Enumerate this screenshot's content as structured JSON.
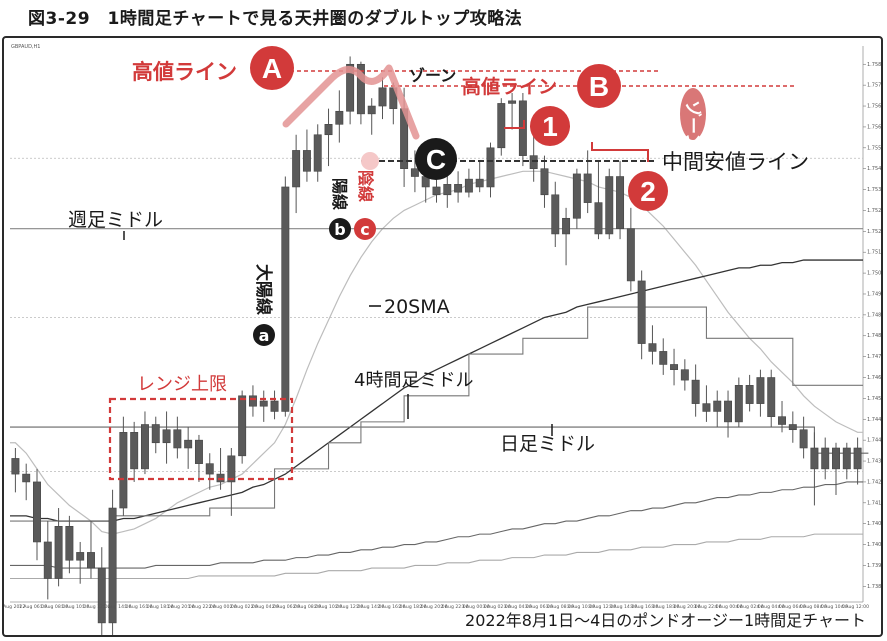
{
  "figure_title": "図3-29　1時間足チャートで見る天井圏のダブルトップ攻略法",
  "colors": {
    "accent": "#d23a3a",
    "dark": "#1a1a1a",
    "candle": "#555555",
    "ma20": "#b8b8b8",
    "ma_long": "#333333"
  },
  "chart_data": {
    "type": "candlestick",
    "title": "GBPAUD,H1",
    "caption": "2022年8月1日～4日のポンドオージー1時間足チャート",
    "ylim": [
      1.7379,
      1.7592
    ],
    "y_ticks": [
      "1.75850",
      "1.75770",
      "1.75690",
      "1.75610",
      "1.75530",
      "1.75450",
      "1.75370",
      "1.75290",
      "1.75210",
      "1.75130",
      "1.75050",
      "1.74970",
      "1.74890",
      "1.74810",
      "1.74730",
      "1.74650",
      "1.74570",
      "1.74490",
      "1.74410",
      "1.74330",
      "1.74250",
      "1.74170",
      "1.74090",
      "1.74010",
      "1.73930",
      "1.73850"
    ],
    "x_ticks": [
      "1 Aug 2022",
      "1 Aug 06:00",
      "1 Aug 08:00",
      "1 Aug 10:00",
      "1 Aug 12:00",
      "1 Aug 14:00",
      "1 Aug 16:00",
      "1 Aug 18:00",
      "1 Aug 20:00",
      "1 Aug 22:00",
      "2 Aug 00:00",
      "2 Aug 02:00",
      "2 Aug 04:00",
      "2 Aug 06:00",
      "2 Aug 08:00",
      "2 Aug 10:00",
      "2 Aug 12:00",
      "2 Aug 14:00",
      "2 Aug 16:00",
      "2 Aug 18:00",
      "2 Aug 20:00",
      "2 Aug 22:00",
      "3 Aug 00:00",
      "3 Aug 02:00",
      "3 Aug 04:00",
      "3 Aug 06:00",
      "3 Aug 08:00",
      "3 Aug 10:00",
      "3 Aug 12:00",
      "3 Aug 14:00",
      "3 Aug 16:00",
      "3 Aug 18:00",
      "3 Aug 20:00",
      "3 Aug 22:00",
      "4 Aug 00:00",
      "4 Aug 02:00",
      "4 Aug 04:00",
      "4 Aug 06:00",
      "4 Aug 08:00",
      "4 Aug 10:00",
      "4 Aug 12:00"
    ],
    "candles": [
      {
        "o": 1.7434,
        "h": 1.7438,
        "l": 1.7421,
        "c": 1.7428
      },
      {
        "o": 1.7428,
        "h": 1.7432,
        "l": 1.7418,
        "c": 1.7425
      },
      {
        "o": 1.7425,
        "h": 1.743,
        "l": 1.7395,
        "c": 1.7402
      },
      {
        "o": 1.7402,
        "h": 1.741,
        "l": 1.738,
        "c": 1.7388
      },
      {
        "o": 1.7388,
        "h": 1.7415,
        "l": 1.7385,
        "c": 1.7408
      },
      {
        "o": 1.7408,
        "h": 1.7412,
        "l": 1.739,
        "c": 1.7395
      },
      {
        "o": 1.7395,
        "h": 1.7402,
        "l": 1.7386,
        "c": 1.7398
      },
      {
        "o": 1.7398,
        "h": 1.741,
        "l": 1.7388,
        "c": 1.7392
      },
      {
        "o": 1.7392,
        "h": 1.74,
        "l": 1.7366,
        "c": 1.7371
      },
      {
        "o": 1.7371,
        "h": 1.7422,
        "l": 1.7366,
        "c": 1.7415
      },
      {
        "o": 1.7415,
        "h": 1.745,
        "l": 1.7412,
        "c": 1.7444
      },
      {
        "o": 1.7444,
        "h": 1.7448,
        "l": 1.7425,
        "c": 1.743
      },
      {
        "o": 1.743,
        "h": 1.7452,
        "l": 1.7428,
        "c": 1.7447
      },
      {
        "o": 1.7447,
        "h": 1.745,
        "l": 1.7436,
        "c": 1.744
      },
      {
        "o": 1.744,
        "h": 1.7452,
        "l": 1.7432,
        "c": 1.7445
      },
      {
        "o": 1.7445,
        "h": 1.745,
        "l": 1.7434,
        "c": 1.7438
      },
      {
        "o": 1.7438,
        "h": 1.7446,
        "l": 1.743,
        "c": 1.7441
      },
      {
        "o": 1.7441,
        "h": 1.7443,
        "l": 1.7425,
        "c": 1.7432
      },
      {
        "o": 1.7432,
        "h": 1.7436,
        "l": 1.7422,
        "c": 1.7428
      },
      {
        "o": 1.7428,
        "h": 1.7438,
        "l": 1.7422,
        "c": 1.7425
      },
      {
        "o": 1.7425,
        "h": 1.7438,
        "l": 1.7412,
        "c": 1.7435
      },
      {
        "o": 1.7435,
        "h": 1.746,
        "l": 1.7432,
        "c": 1.7458
      },
      {
        "o": 1.7458,
        "h": 1.7462,
        "l": 1.745,
        "c": 1.7454
      },
      {
        "o": 1.7454,
        "h": 1.746,
        "l": 1.7448,
        "c": 1.7456
      },
      {
        "o": 1.7456,
        "h": 1.746,
        "l": 1.7449,
        "c": 1.7452
      },
      {
        "o": 1.7452,
        "h": 1.7542,
        "l": 1.745,
        "c": 1.7538
      },
      {
        "o": 1.7538,
        "h": 1.7558,
        "l": 1.7528,
        "c": 1.7552
      },
      {
        "o": 1.7552,
        "h": 1.756,
        "l": 1.754,
        "c": 1.7544
      },
      {
        "o": 1.7544,
        "h": 1.7562,
        "l": 1.754,
        "c": 1.7558
      },
      {
        "o": 1.7558,
        "h": 1.7568,
        "l": 1.7546,
        "c": 1.7562
      },
      {
        "o": 1.7562,
        "h": 1.7575,
        "l": 1.7555,
        "c": 1.7567
      },
      {
        "o": 1.7567,
        "h": 1.7588,
        "l": 1.7562,
        "c": 1.7585
      },
      {
        "o": 1.7585,
        "h": 1.7586,
        "l": 1.7562,
        "c": 1.7566
      },
      {
        "o": 1.7566,
        "h": 1.7572,
        "l": 1.7558,
        "c": 1.7569
      },
      {
        "o": 1.7569,
        "h": 1.758,
        "l": 1.7564,
        "c": 1.7576
      },
      {
        "o": 1.7576,
        "h": 1.7578,
        "l": 1.7562,
        "c": 1.7568
      },
      {
        "o": 1.7568,
        "h": 1.7576,
        "l": 1.7538,
        "c": 1.7545
      },
      {
        "o": 1.7545,
        "h": 1.7552,
        "l": 1.7536,
        "c": 1.7542
      },
      {
        "o": 1.7542,
        "h": 1.7545,
        "l": 1.7532,
        "c": 1.7538
      },
      {
        "o": 1.7538,
        "h": 1.7542,
        "l": 1.7532,
        "c": 1.7535
      },
      {
        "o": 1.7535,
        "h": 1.7542,
        "l": 1.753,
        "c": 1.7539
      },
      {
        "o": 1.7539,
        "h": 1.7544,
        "l": 1.7532,
        "c": 1.7536
      },
      {
        "o": 1.7536,
        "h": 1.7545,
        "l": 1.7534,
        "c": 1.7541
      },
      {
        "o": 1.7541,
        "h": 1.7548,
        "l": 1.7536,
        "c": 1.7538
      },
      {
        "o": 1.7538,
        "h": 1.7555,
        "l": 1.7534,
        "c": 1.7553
      },
      {
        "o": 1.7553,
        "h": 1.7572,
        "l": 1.755,
        "c": 1.757
      },
      {
        "o": 1.757,
        "h": 1.7574,
        "l": 1.756,
        "c": 1.7571
      },
      {
        "o": 1.7571,
        "h": 1.7574,
        "l": 1.7546,
        "c": 1.755
      },
      {
        "o": 1.755,
        "h": 1.756,
        "l": 1.754,
        "c": 1.7545
      },
      {
        "o": 1.7545,
        "h": 1.755,
        "l": 1.753,
        "c": 1.7535
      },
      {
        "o": 1.7535,
        "h": 1.754,
        "l": 1.7515,
        "c": 1.752
      },
      {
        "o": 1.752,
        "h": 1.753,
        "l": 1.7508,
        "c": 1.7526
      },
      {
        "o": 1.7526,
        "h": 1.7545,
        "l": 1.7522,
        "c": 1.7543
      },
      {
        "o": 1.7543,
        "h": 1.7552,
        "l": 1.7528,
        "c": 1.7532
      },
      {
        "o": 1.7532,
        "h": 1.7548,
        "l": 1.7518,
        "c": 1.752
      },
      {
        "o": 1.752,
        "h": 1.7545,
        "l": 1.7518,
        "c": 1.7542
      },
      {
        "o": 1.7542,
        "h": 1.7548,
        "l": 1.7518,
        "c": 1.7522
      },
      {
        "o": 1.7522,
        "h": 1.753,
        "l": 1.7498,
        "c": 1.7502
      },
      {
        "o": 1.7502,
        "h": 1.7506,
        "l": 1.7472,
        "c": 1.7478
      },
      {
        "o": 1.7478,
        "h": 1.7485,
        "l": 1.747,
        "c": 1.7475
      },
      {
        "o": 1.7475,
        "h": 1.748,
        "l": 1.7466,
        "c": 1.747
      },
      {
        "o": 1.747,
        "h": 1.7476,
        "l": 1.7462,
        "c": 1.7468
      },
      {
        "o": 1.7468,
        "h": 1.7472,
        "l": 1.746,
        "c": 1.7464
      },
      {
        "o": 1.7464,
        "h": 1.747,
        "l": 1.745,
        "c": 1.7455
      },
      {
        "o": 1.7455,
        "h": 1.7462,
        "l": 1.7448,
        "c": 1.7452
      },
      {
        "o": 1.7452,
        "h": 1.746,
        "l": 1.7446,
        "c": 1.7456
      },
      {
        "o": 1.7456,
        "h": 1.746,
        "l": 1.7442,
        "c": 1.7448
      },
      {
        "o": 1.7448,
        "h": 1.7465,
        "l": 1.7446,
        "c": 1.7462
      },
      {
        "o": 1.7462,
        "h": 1.7466,
        "l": 1.7452,
        "c": 1.7455
      },
      {
        "o": 1.7455,
        "h": 1.7468,
        "l": 1.745,
        "c": 1.7465
      },
      {
        "o": 1.7465,
        "h": 1.7468,
        "l": 1.7446,
        "c": 1.745
      },
      {
        "o": 1.745,
        "h": 1.7456,
        "l": 1.7444,
        "c": 1.7447
      },
      {
        "o": 1.7447,
        "h": 1.7452,
        "l": 1.744,
        "c": 1.7445
      },
      {
        "o": 1.7445,
        "h": 1.745,
        "l": 1.7434,
        "c": 1.7438
      },
      {
        "o": 1.7438,
        "h": 1.7444,
        "l": 1.7416,
        "c": 1.743
      },
      {
        "o": 1.743,
        "h": 1.7442,
        "l": 1.7426,
        "c": 1.7438
      },
      {
        "o": 1.7438,
        "h": 1.744,
        "l": 1.742,
        "c": 1.743
      },
      {
        "o": 1.743,
        "h": 1.744,
        "l": 1.7426,
        "c": 1.7438
      },
      {
        "o": 1.7438,
        "h": 1.7442,
        "l": 1.7424,
        "c": 1.743
      }
    ],
    "lines": {
      "ma20": [
        1.744,
        1.7436,
        1.743,
        1.7424,
        1.742,
        1.7416,
        1.7413,
        1.741,
        1.7406,
        1.7405,
        1.7406,
        1.7407,
        1.7409,
        1.7411,
        1.7414,
        1.7417,
        1.7419,
        1.7421,
        1.7423,
        1.7424,
        1.7426,
        1.7428,
        1.7432,
        1.7436,
        1.744,
        1.7447,
        1.7457,
        1.7468,
        1.7478,
        1.7487,
        1.7496,
        1.7504,
        1.7511,
        1.7517,
        1.7522,
        1.7526,
        1.7529,
        1.7531,
        1.7533,
        1.7535,
        1.7536,
        1.7537,
        1.7539,
        1.754,
        1.7541,
        1.7542,
        1.7543,
        1.7544,
        1.7544,
        1.7544,
        1.7543,
        1.7542,
        1.7541,
        1.754,
        1.7538,
        1.7537,
        1.7536,
        1.7534,
        1.7531,
        1.7527,
        1.7523,
        1.7518,
        1.7513,
        1.7508,
        1.7502,
        1.7496,
        1.749,
        1.7485,
        1.748,
        1.7476,
        1.7471,
        1.7467,
        1.7463,
        1.7458,
        1.7454,
        1.7451,
        1.7448,
        1.7446,
        1.7444
      ],
      "ma_mid": [
        1.7412,
        1.7412,
        1.7411,
        1.7411,
        1.741,
        1.741,
        1.741,
        1.741,
        1.741,
        1.741,
        1.7411,
        1.7411,
        1.7412,
        1.7413,
        1.7414,
        1.7415,
        1.7416,
        1.7417,
        1.7418,
        1.7419,
        1.742,
        1.7421,
        1.7423,
        1.7424,
        1.7426,
        1.7428,
        1.7431,
        1.7434,
        1.7437,
        1.744,
        1.7443,
        1.7446,
        1.7449,
        1.7452,
        1.7455,
        1.7458,
        1.7461,
        1.7463,
        1.7466,
        1.7468,
        1.747,
        1.7472,
        1.7474,
        1.7476,
        1.7478,
        1.748,
        1.7482,
        1.7484,
        1.7486,
        1.7488,
        1.7489,
        1.749,
        1.7492,
        1.7493,
        1.7494,
        1.7495,
        1.7496,
        1.7497,
        1.7498,
        1.7499,
        1.75,
        1.7501,
        1.7502,
        1.7503,
        1.7504,
        1.7505,
        1.7506,
        1.7507,
        1.7507,
        1.7508,
        1.7508,
        1.7509,
        1.7509,
        1.751,
        1.751,
        1.751,
        1.751,
        1.751,
        1.751
      ],
      "ma_long1": [
        1.7393,
        1.7393,
        1.7393,
        1.7393,
        1.7392,
        1.7392,
        1.7392,
        1.7392,
        1.7392,
        1.7392,
        1.7392,
        1.7392,
        1.7392,
        1.7393,
        1.7393,
        1.7393,
        1.7393,
        1.7393,
        1.7393,
        1.7394,
        1.7394,
        1.7394,
        1.7394,
        1.7395,
        1.7395,
        1.7395,
        1.7396,
        1.7396,
        1.7397,
        1.7397,
        1.7398,
        1.7398,
        1.7399,
        1.7399,
        1.74,
        1.74,
        1.7401,
        1.7401,
        1.7402,
        1.7402,
        1.7403,
        1.7404,
        1.7404,
        1.7405,
        1.7405,
        1.7406,
        1.7407,
        1.7407,
        1.7408,
        1.7409,
        1.7409,
        1.741,
        1.741,
        1.7411,
        1.7412,
        1.7412,
        1.7413,
        1.7414,
        1.7414,
        1.7415,
        1.7415,
        1.7416,
        1.7417,
        1.7417,
        1.7418,
        1.7419,
        1.7419,
        1.742,
        1.742,
        1.7421,
        1.7421,
        1.7422,
        1.7422,
        1.7423,
        1.7423,
        1.7424,
        1.7424,
        1.7425,
        1.7425
      ],
      "ma_long2": [
        1.7388,
        1.7388,
        1.7388,
        1.7388,
        1.7388,
        1.7388,
        1.7388,
        1.7388,
        1.7388,
        1.7388,
        1.7388,
        1.7388,
        1.7388,
        1.7388,
        1.7388,
        1.7388,
        1.7388,
        1.7389,
        1.7389,
        1.7389,
        1.7389,
        1.7389,
        1.7389,
        1.7389,
        1.7389,
        1.739,
        1.739,
        1.739,
        1.739,
        1.7391,
        1.7391,
        1.7391,
        1.7391,
        1.7392,
        1.7392,
        1.7392,
        1.7392,
        1.7393,
        1.7393,
        1.7393,
        1.7394,
        1.7394,
        1.7394,
        1.7395,
        1.7395,
        1.7395,
        1.7396,
        1.7396,
        1.7396,
        1.7397,
        1.7397,
        1.7397,
        1.7398,
        1.7398,
        1.7398,
        1.7399,
        1.7399,
        1.7399,
        1.74,
        1.74,
        1.74,
        1.7401,
        1.7401,
        1.7401,
        1.7402,
        1.7402,
        1.7402,
        1.7403,
        1.7403,
        1.7403,
        1.7404,
        1.7404,
        1.7404,
        1.7404,
        1.7405,
        1.7405,
        1.7405,
        1.7405,
        1.7405
      ],
      "weekly_mid": [
        1.7522,
        1.7522,
        1.7522,
        1.7522,
        1.7522,
        1.7522,
        1.7522,
        1.7522,
        1.7522,
        1.7522,
        1.7522,
        1.7522,
        1.7522,
        1.7522,
        1.7522,
        1.7522,
        1.7522,
        1.7522,
        1.7522,
        1.7522,
        1.7522,
        1.7522,
        1.7522,
        1.7522,
        1.7522,
        1.7522,
        1.7522,
        1.7522,
        1.7522,
        1.7522,
        1.7522,
        1.7522,
        1.7522,
        1.7522,
        1.7522,
        1.7522,
        1.7522,
        1.7522,
        1.7522,
        1.7522,
        1.7522,
        1.7522,
        1.7522,
        1.7522,
        1.7522,
        1.7522,
        1.7522,
        1.7522,
        1.7522,
        1.7522,
        1.7522,
        1.7522,
        1.7522,
        1.7522,
        1.7522,
        1.7522,
        1.7522,
        1.7522,
        1.7522,
        1.7522,
        1.7522,
        1.7522,
        1.7522,
        1.7522,
        1.7522,
        1.7522,
        1.7522,
        1.7522,
        1.7522,
        1.7522,
        1.7522,
        1.7522,
        1.7522,
        1.7522,
        1.7522,
        1.7522,
        1.7522,
        1.7522,
        1.7522
      ],
      "daily_mid": [
        1.7446,
        1.7446,
        1.7446,
        1.7446,
        1.7446,
        1.7446,
        1.7446,
        1.7446,
        1.7446,
        1.7446,
        1.7446,
        1.7446,
        1.7446,
        1.7446,
        1.7446,
        1.7446,
        1.7446,
        1.7446,
        1.7446,
        1.7446,
        1.7446,
        1.7446,
        1.7446,
        1.7446,
        1.7446,
        1.7446,
        1.7446,
        1.7446,
        1.7446,
        1.7446,
        1.7446,
        1.7446,
        1.7446,
        1.7446,
        1.7446,
        1.7446,
        1.7446,
        1.7446,
        1.7446,
        1.7446,
        1.7446,
        1.7446,
        1.7446,
        1.7446,
        1.7446,
        1.7446,
        1.7446,
        1.7446,
        1.7446,
        1.7446,
        1.7446,
        1.7446,
        1.7446,
        1.7446,
        1.7446,
        1.7446,
        1.7446,
        1.7446,
        1.7446,
        1.7446,
        1.7446,
        1.7446,
        1.7446,
        1.7446,
        1.7446,
        1.7446,
        1.7446,
        1.7446,
        1.7446,
        1.7446,
        1.7446,
        1.7446,
        1.7446,
        1.7446,
        1.7436,
        1.7436,
        1.7436,
        1.7436,
        1.7436,
        1.7436
      ],
      "h4_mid": [
        1.741,
        1.741,
        1.741,
        1.741,
        1.741,
        1.741,
        1.741,
        1.741,
        1.741,
        1.7412,
        1.7412,
        1.7412,
        1.7412,
        1.7412,
        1.7412,
        1.7412,
        1.7412,
        1.7412,
        1.7415,
        1.7415,
        1.7415,
        1.7415,
        1.7415,
        1.7415,
        1.743,
        1.743,
        1.743,
        1.743,
        1.743,
        1.744,
        1.744,
        1.744,
        1.7448,
        1.7448,
        1.7448,
        1.7448,
        1.7458,
        1.7458,
        1.7458,
        1.7458,
        1.7458,
        1.7458,
        1.7474,
        1.7474,
        1.7474,
        1.7474,
        1.7474,
        1.748,
        1.748,
        1.748,
        1.748,
        1.748,
        1.748,
        1.7492,
        1.7492,
        1.7492,
        1.7492,
        1.7492,
        1.7492,
        1.7492,
        1.7492,
        1.7492,
        1.7492,
        1.7492,
        1.748,
        1.748,
        1.748,
        1.748,
        1.748,
        1.748,
        1.748,
        1.748,
        1.7462,
        1.7462,
        1.7462,
        1.7462,
        1.7462,
        1.7462,
        1.7462
      ]
    }
  },
  "annotations": {
    "takane_a": "高値ライン",
    "letter_a": "A",
    "zone_1": "ゾーン",
    "takane_b": "高値ライン",
    "letter_b": "B",
    "zone_2": "ゾーン",
    "letter_c": "C",
    "num_1": "1",
    "num_2": "2",
    "nakayasu": "中間安値ライン",
    "youkou": "陽線",
    "inkou": "陰線",
    "circ_b": "b",
    "circ_c": "c",
    "shumidoru": "週足ミドル",
    "daiyousen": "大陽線",
    "circ_a": "a",
    "sma20": "20SMA",
    "range_top": "レンジ上限",
    "h4_midoru": "4時間足ミドル",
    "nichi_midoru": "日足ミドル"
  }
}
